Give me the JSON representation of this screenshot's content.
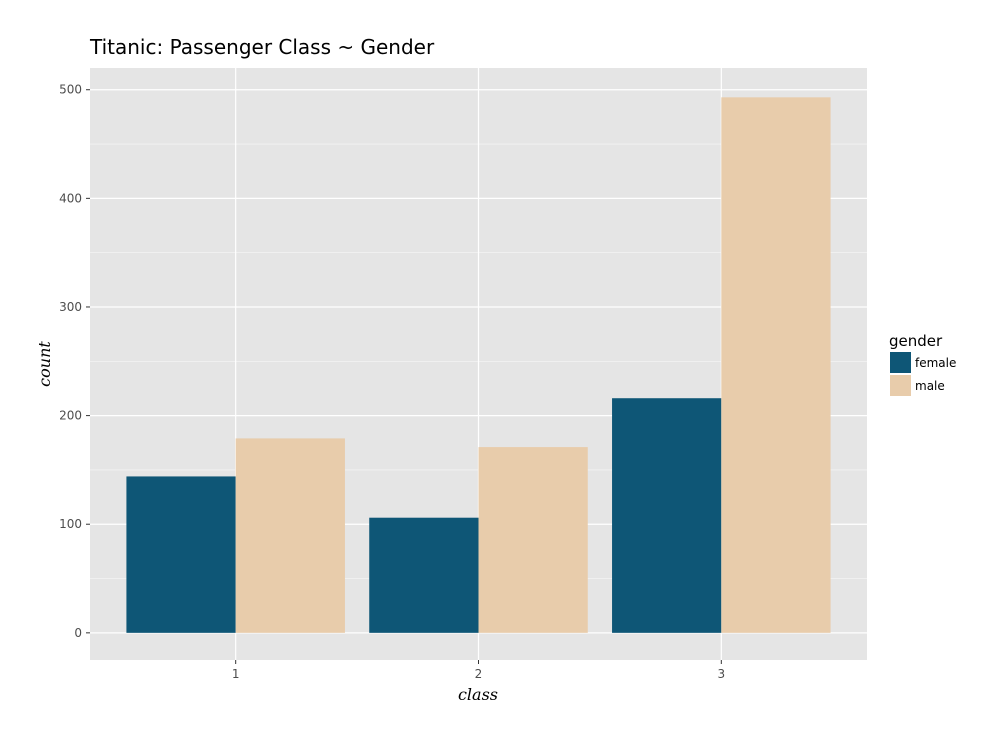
{
  "chart_data": {
    "type": "bar",
    "title": "Titanic: Passenger Class ~ Gender",
    "xlabel": "class",
    "ylabel": "count",
    "categories": [
      "1",
      "2",
      "3"
    ],
    "series": [
      {
        "name": "female",
        "values": [
          144,
          106,
          216
        ],
        "color": "#0e5676"
      },
      {
        "name": "male",
        "values": [
          179,
          171,
          493
        ],
        "color": "#e8ccab"
      }
    ],
    "ylim": [
      -25,
      520
    ],
    "yticks": [
      0,
      100,
      200,
      300,
      400,
      500
    ],
    "grid": true,
    "legend": {
      "title": "gender",
      "placement": "right"
    },
    "panel_background": "#e5e5e5",
    "grid_color": "#ffffff"
  }
}
